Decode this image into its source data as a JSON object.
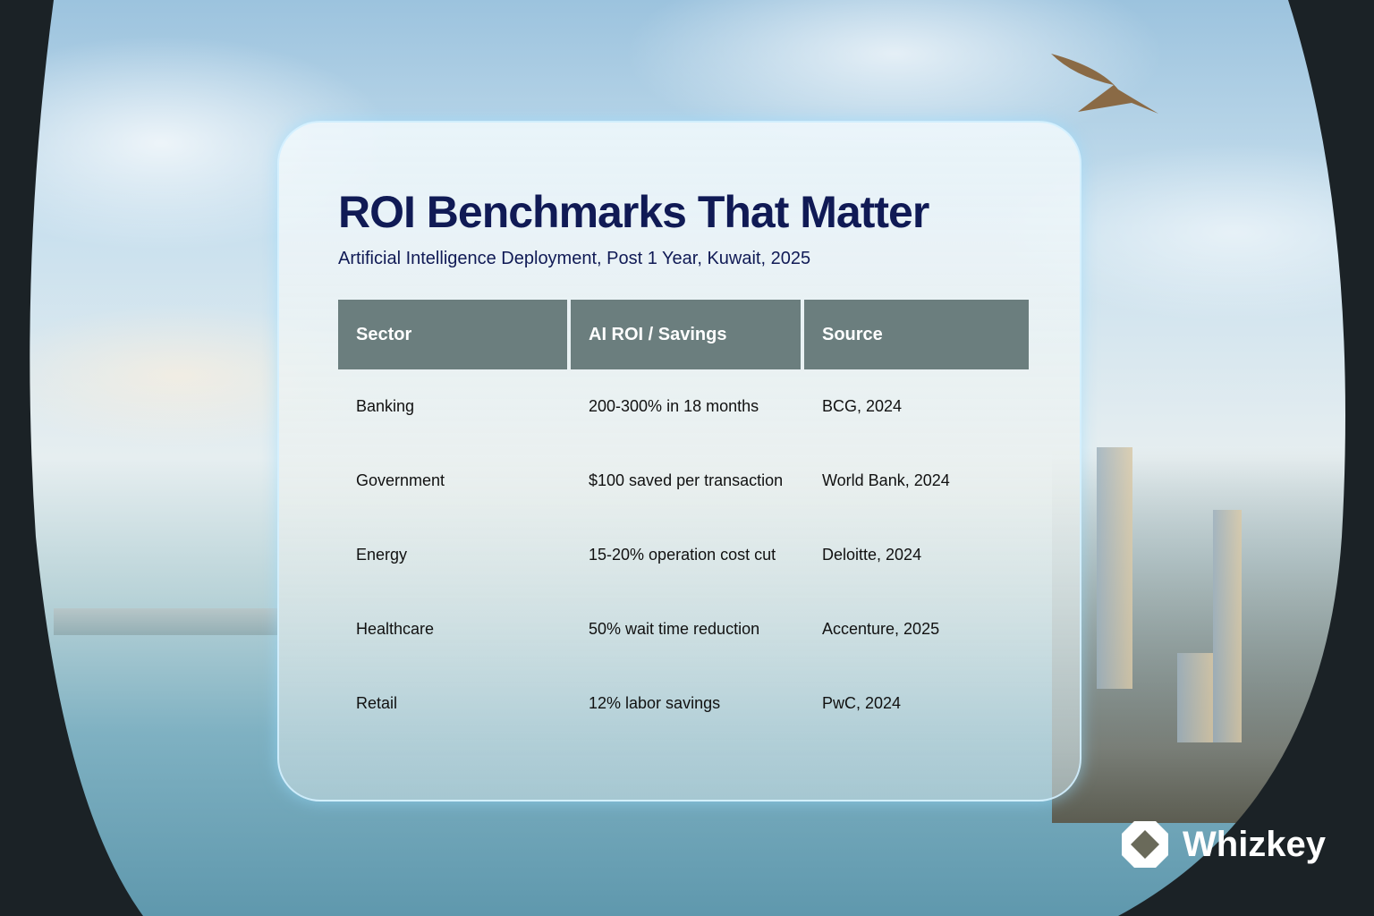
{
  "title": "ROI Benchmarks That Matter",
  "subtitle": "Artificial Intelligence Deployment, Post 1 Year, Kuwait, 2025",
  "table": {
    "headers": [
      "Sector",
      "AI ROI / Savings",
      "Source"
    ],
    "rows": [
      [
        "Banking",
        "200-300% in 18 months",
        "BCG, 2024"
      ],
      [
        "Government",
        "$100 saved per transaction",
        "World Bank, 2024"
      ],
      [
        "Energy",
        "15-20% operation cost cut",
        "Deloitte, 2024"
      ],
      [
        "Healthcare",
        "50% wait time reduction",
        "Accenture, 2025"
      ],
      [
        "Retail",
        "12% labor savings",
        "PwC, 2024"
      ]
    ]
  },
  "brand": {
    "name": "Whizkey"
  },
  "colors": {
    "title": "#101a55",
    "header_bg": "#6b7e7e"
  }
}
